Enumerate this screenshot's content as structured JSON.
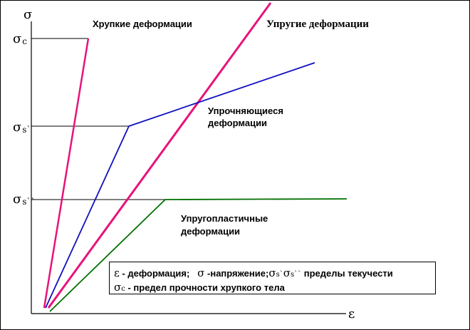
{
  "axes": {
    "y_symbol": "σ",
    "x_symbol": "ε"
  },
  "levels": {
    "sigma_c": {
      "symbol": "σ",
      "subscript": "c"
    },
    "sigma_s1": {
      "symbol": "σ",
      "subscript": "s`"
    },
    "sigma_s2": {
      "symbol": "σ",
      "subscript": "s``"
    }
  },
  "curves": {
    "brittle": {
      "label": "Хрупкие деформации",
      "color": "#e8137a"
    },
    "elastic": {
      "label": "Упругие деформации",
      "color": "#e8137a"
    },
    "hardening": {
      "label_line1": "Упрочняющиеся",
      "label_line2": "деформации",
      "color": "#1010c0"
    },
    "elastoplastic": {
      "label_line1": "Упругопластичные",
      "label_line2": "деформации",
      "color": "#007000"
    }
  },
  "legend": {
    "eps": "ε",
    "eps_text": " - деформация;",
    "sig": "σ",
    "sig_text": " -напряжение;",
    "sig_s1": "σ",
    "sub_s1": "s`",
    "sig_s2": "σ",
    "sub_s2": "s``",
    "yield_text": " пределы текучести",
    "sig_c": "σ",
    "sub_c": "c",
    "strength_text": " - предел прочности хрупкого тела"
  }
}
